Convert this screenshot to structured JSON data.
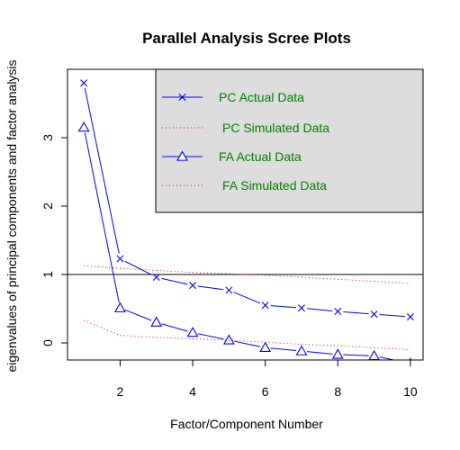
{
  "chart_data": {
    "type": "line",
    "title": "Parallel Analysis Scree Plots",
    "xlabel": "Factor/Component Number",
    "ylabel": "eigenvalues of principal components and factor analysis",
    "xlim": [
      0.55,
      10.35
    ],
    "ylim": [
      -0.25,
      4.0
    ],
    "xticks": [
      2,
      4,
      6,
      8,
      10
    ],
    "yticks": [
      0,
      1,
      2,
      3
    ],
    "hline": 1,
    "grid": false,
    "legend_position": "top-right",
    "legend_bg": "#dddddd",
    "series": [
      {
        "name": "PC  Actual Data",
        "color": "#0000ff",
        "style": "solid",
        "marker": "x",
        "x": [
          1,
          2,
          3,
          4,
          5,
          6,
          7,
          8,
          9,
          10
        ],
        "y": [
          3.8,
          1.23,
          0.96,
          0.84,
          0.77,
          0.55,
          0.51,
          0.46,
          0.42,
          0.38
        ]
      },
      {
        "name": "PC  Simulated Data",
        "color": "#ff0000",
        "style": "dotted",
        "marker": "none",
        "x": [
          1,
          2,
          3,
          4,
          5,
          6,
          7,
          8,
          9,
          10
        ],
        "y": [
          1.13,
          1.09,
          1.06,
          1.03,
          1.01,
          0.99,
          0.96,
          0.93,
          0.9,
          0.87
        ]
      },
      {
        "name": "FA  Actual Data",
        "color": "#0000ff",
        "style": "solid",
        "marker": "triangle",
        "x": [
          1,
          2,
          3,
          4,
          5,
          6,
          7,
          8,
          9,
          10
        ],
        "y": [
          3.15,
          0.51,
          0.3,
          0.15,
          0.04,
          -0.07,
          -0.12,
          -0.17,
          -0.19,
          -0.3
        ]
      },
      {
        "name": "FA  Simulated Data",
        "color": "#ff0000",
        "style": "dotted",
        "marker": "none",
        "x": [
          1,
          2,
          3,
          4,
          5,
          6,
          7,
          8,
          9,
          10
        ],
        "y": [
          0.33,
          0.11,
          0.08,
          0.06,
          0.04,
          0.01,
          -0.02,
          -0.04,
          -0.07,
          -0.1
        ]
      }
    ]
  }
}
